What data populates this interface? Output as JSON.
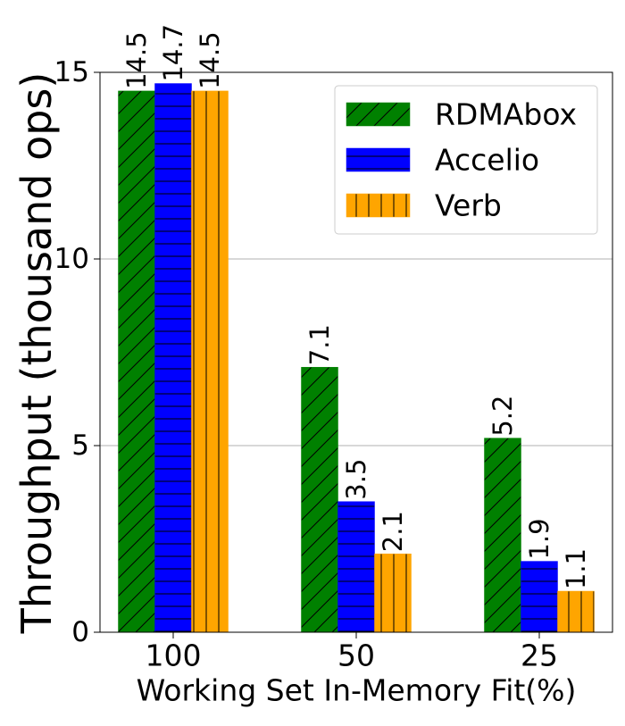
{
  "chart_data": {
    "type": "bar",
    "categories": [
      "100",
      "50",
      "25"
    ],
    "series": [
      {
        "name": "RDMAbox",
        "values": [
          14.5,
          7.1,
          5.2
        ],
        "color": "#008000",
        "hatch": "diagonal"
      },
      {
        "name": "Accelio",
        "values": [
          14.7,
          3.5,
          1.9
        ],
        "color": "#0000ff",
        "hatch": "horizontal"
      },
      {
        "name": "Verb",
        "values": [
          14.5,
          2.1,
          1.1
        ],
        "color": "#ffa500",
        "hatch": "vertical"
      }
    ],
    "data_labels": [
      [
        "14.5",
        "7.1",
        "5.2"
      ],
      [
        "14.7",
        "3.5",
        "1.9"
      ],
      [
        "14.5",
        "2.1",
        "1.1"
      ]
    ],
    "xlabel": "Working Set In-Memory Fit(%)",
    "ylabel": "Throughput (thousand ops)",
    "ylim": [
      0,
      15
    ],
    "yticks": [
      "0",
      "5",
      "10",
      "15"
    ],
    "grid": "horizontal",
    "legend": "top-right"
  }
}
